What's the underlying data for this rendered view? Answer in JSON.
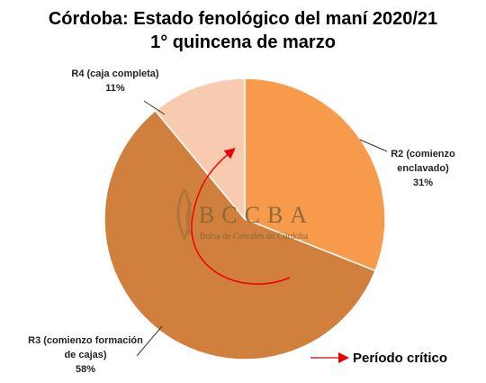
{
  "chart_data": {
    "type": "pie",
    "title": "Córdoba: Estado fenológico del maní 2020/21",
    "subtitle": "1° quincena de marzo",
    "categories": [
      "R2 (comienzo enclavado)",
      "R3 (comienzo formación de cajas)",
      "R4 (caja completa)"
    ],
    "values": [
      31,
      58,
      11
    ],
    "value_labels": [
      "31%",
      "58%",
      "11%"
    ],
    "colors": [
      "#f79a4b",
      "#d07f3c",
      "#f8cbb0"
    ],
    "watermark": {
      "logo": "BCCBA",
      "name": "Bolsa de Cereales de Córdoba"
    },
    "annotation": "Período crítico"
  }
}
